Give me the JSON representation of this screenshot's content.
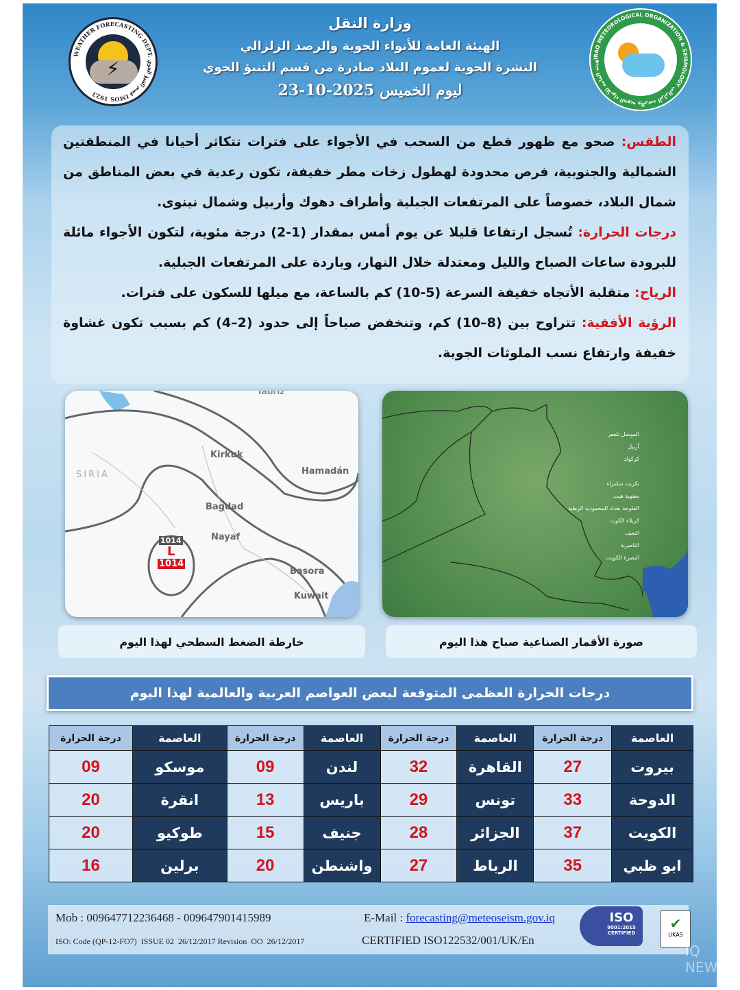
{
  "header": {
    "ministry": "وزارة النقل",
    "authority": "الهيئة العامة للأنواء الجوية والرصد الزلزالي",
    "bulletin": "النشرة الجوية لعموم البلاد صادرة من قسم التنبؤ الجوي",
    "date_line": "ليوم الخميس 2025-10-23",
    "left_logo_text": "WEATHER FORECASTING DEPT. قسم التنبؤ الجوي IMOS 1923",
    "right_logo_text": "IRAQ METEOROLOGICAL ORGANIZATION & SEISMOLOGY الهيئة العامة للأنواء الجوية والرصد الزلزالي"
  },
  "forecast": [
    {
      "label": "الطقس:",
      "text": " صحو مع ظهور قطع من السحب في الأجواء على فترات تتكاثر أحيانا في المنطقتين الشمالية والجنوبية، فرص محدودة لهطول زخات مطر خفيفة، تكون رعدية في بعض المناطق من شمال البلاد، خصوصاً على المرتفعات الجبلية وأطراف دهوك وأربيل وشمال نينوى."
    },
    {
      "label": "درجات الحرارة:",
      "text": " تُسجل ارتفاعا قليلا عن يوم أمس بمقدار (1-2) درجة مئوية، لتكون الأجواء مائلة للبرودة ساعات الصباح والليل ومعتدلة خلال النهار، وباردة على المرتفعات الجبلية."
    },
    {
      "label": "الرياح:",
      "text": " متقلبة الأتجاه خفيفة السرعة (5-10) كم بالساعة، مع ميلها للسكون على فترات."
    },
    {
      "label": "الرؤية الأفقية:",
      "text": " تتراوح بين (8–10) كم، وتنخفض صباحاً إلى حدود (2–4) كم بسبب تكون غشاوة خفيفة وارتفاع نسب الملوثات الجوية."
    }
  ],
  "maps": {
    "pressure_caption": "خارطة الضغط السطحي لهذا اليوم",
    "satellite_caption": "صورة الأقمار الصناعية صباح هذا اليوم",
    "pressure_labels": [
      "Tabriz",
      "Kirkuk",
      "SIRIA",
      "Hamadán",
      "Bagdad",
      "Nayaf",
      "Basora",
      "Kuwait"
    ],
    "low_symbol": "L",
    "low_value": "1014",
    "isobar_label": "1014",
    "satellite_labels": [
      "الموصل",
      "تلعفر",
      "أربيل",
      "كركوك",
      "تكريت",
      "سامراء",
      "بعقوبة",
      "هيت",
      "الفلوجة",
      "بغداد",
      "المحمودية",
      "الرطبة",
      "كربلاء",
      "الكوت",
      "النجف",
      "الناصرية",
      "البصرة",
      "الكويت"
    ]
  },
  "table": {
    "title": "درجات الحرارة العظمى المتوقعة لبعض العواصم العربية والعالمية لهذا اليوم",
    "col_capital": "العاصمة",
    "col_temp": "درجة الحرارة",
    "rows": [
      [
        {
          "city": "بيروت",
          "temp": "27"
        },
        {
          "city": "القاهرة",
          "temp": "32"
        },
        {
          "city": "لندن",
          "temp": "09"
        },
        {
          "city": "موسكو",
          "temp": "09"
        }
      ],
      [
        {
          "city": "الدوحة",
          "temp": "33"
        },
        {
          "city": "تونس",
          "temp": "29"
        },
        {
          "city": "باريس",
          "temp": "13"
        },
        {
          "city": "انقرة",
          "temp": "20"
        }
      ],
      [
        {
          "city": "الكويت",
          "temp": "37"
        },
        {
          "city": "الجزائر",
          "temp": "28"
        },
        {
          "city": "جنيف",
          "temp": "15"
        },
        {
          "city": "طوكيو",
          "temp": "20"
        }
      ],
      [
        {
          "city": "ابو ظبي",
          "temp": "35"
        },
        {
          "city": "الرباط",
          "temp": "27"
        },
        {
          "city": "واشنطن",
          "temp": "20"
        },
        {
          "city": "برلين",
          "temp": "16"
        }
      ]
    ]
  },
  "footer": {
    "mobile": "Mob : 009647712236468 - 009647901415989",
    "email_label": "E-Mail : ",
    "email": "forecasting@meteoseism.gov.iq",
    "iso_code": "ISO: Code (QP-12-FO7)  ISSUE 02  26/12/2017 Revision  OO  26/12/2017",
    "certified": "CERTIFIED ISO122532/001/UK/En",
    "iso_badge": "ISO",
    "iso_badge_sub": "9001:2015 CERTIFIED",
    "ukas": "UKAS",
    "watermark": "IQ NEWS"
  },
  "colors": {
    "label_red": "#d2161c",
    "table_dark": "#1f3a5c",
    "title_bar": "#4c7fbf",
    "temp_red": "#d3141b"
  }
}
